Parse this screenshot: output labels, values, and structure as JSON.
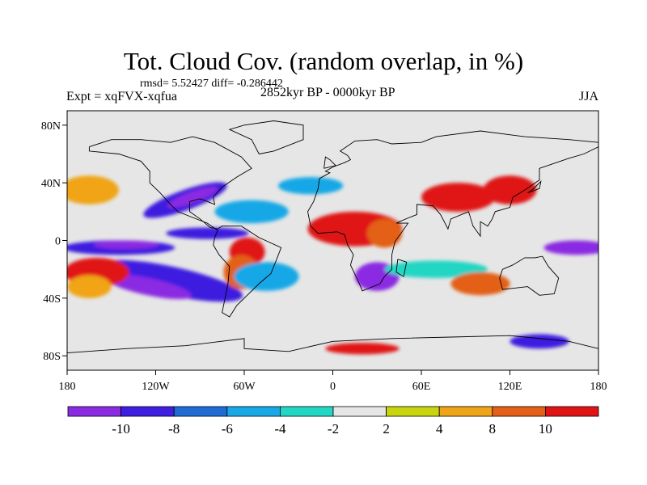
{
  "chart_data": {
    "type": "heatmap",
    "title": "Tot. Cloud Cov. (random overlap, in %)",
    "stats_label": "rmsd= 5.52427 diff= -0.286442",
    "left_label": "Expt = xqFVX-xqfua",
    "center_label": "2852kyr BP - 0000kyr BP",
    "right_label": "JJA",
    "x_ticks": [
      "180",
      "120W",
      "60W",
      "0",
      "60E",
      "120E",
      "180"
    ],
    "y_ticks": [
      "80N",
      "40N",
      "0",
      "40S",
      "80S"
    ],
    "x_tick_values": [
      -180,
      -120,
      -60,
      0,
      60,
      120,
      180
    ],
    "y_tick_values": [
      80,
      40,
      0,
      -40,
      -80
    ],
    "xlim": [
      -180,
      180
    ],
    "ylim": [
      -90,
      90
    ],
    "colorbar": {
      "boundaries": [
        "-10",
        "-8",
        "-6",
        "-4",
        "-2",
        "2",
        "4",
        "8",
        "10"
      ],
      "colors": [
        "#8a2be2",
        "#3e1ee0",
        "#1e6bd6",
        "#19a8e6",
        "#22d6c4",
        "#e6e6e6",
        "#c8d40e",
        "#f0a418",
        "#e36016",
        "#e01414"
      ]
    },
    "field_background": "#e6e6e6",
    "anomalies": [
      {
        "lon": -145,
        "lat": -5,
        "rx": 38,
        "ry": 5,
        "c": "#3e1ee0"
      },
      {
        "lon": -140,
        "lat": -3,
        "rx": 22,
        "ry": 3,
        "c": "#8a2be2"
      },
      {
        "lon": -110,
        "lat": -28,
        "rx": 50,
        "ry": 10,
        "c": "#3e1ee0",
        "rot": 12
      },
      {
        "lon": -125,
        "lat": -32,
        "rx": 30,
        "ry": 6,
        "c": "#8a2be2",
        "rot": 12
      },
      {
        "lon": -160,
        "lat": -22,
        "rx": 22,
        "ry": 10,
        "c": "#e01414"
      },
      {
        "lon": -165,
        "lat": -32,
        "rx": 15,
        "ry": 8,
        "c": "#f0a418"
      },
      {
        "lon": -100,
        "lat": 28,
        "rx": 30,
        "ry": 7,
        "c": "#3e1ee0",
        "rot": -20
      },
      {
        "lon": -95,
        "lat": 30,
        "rx": 18,
        "ry": 4,
        "c": "#8a2be2",
        "rot": -20
      },
      {
        "lon": -165,
        "lat": 35,
        "rx": 20,
        "ry": 10,
        "c": "#f0a418"
      },
      {
        "lon": -55,
        "lat": 20,
        "rx": 25,
        "ry": 8,
        "c": "#19a8e6"
      },
      {
        "lon": -85,
        "lat": 5,
        "rx": 28,
        "ry": 4,
        "c": "#3e1ee0"
      },
      {
        "lon": -58,
        "lat": -8,
        "rx": 12,
        "ry": 10,
        "c": "#e01414"
      },
      {
        "lon": -62,
        "lat": -22,
        "rx": 12,
        "ry": 12,
        "c": "#e36016"
      },
      {
        "lon": -45,
        "lat": -25,
        "rx": 22,
        "ry": 10,
        "c": "#19a8e6"
      },
      {
        "lon": 15,
        "lat": 8,
        "rx": 32,
        "ry": 12,
        "c": "#e01414"
      },
      {
        "lon": 35,
        "lat": 5,
        "rx": 12,
        "ry": 10,
        "c": "#e36016"
      },
      {
        "lon": -15,
        "lat": 38,
        "rx": 22,
        "ry": 6,
        "c": "#19a8e6"
      },
      {
        "lon": 30,
        "lat": -25,
        "rx": 15,
        "ry": 10,
        "c": "#8a2be2"
      },
      {
        "lon": 85,
        "lat": 30,
        "rx": 25,
        "ry": 10,
        "c": "#e01414"
      },
      {
        "lon": 120,
        "lat": 35,
        "rx": 18,
        "ry": 10,
        "c": "#e01414"
      },
      {
        "lon": 165,
        "lat": -5,
        "rx": 22,
        "ry": 5,
        "c": "#8a2be2"
      },
      {
        "lon": 70,
        "lat": -20,
        "rx": 35,
        "ry": 6,
        "c": "#22d6c4"
      },
      {
        "lon": 100,
        "lat": -30,
        "rx": 20,
        "ry": 8,
        "c": "#e36016"
      },
      {
        "lon": 20,
        "lat": -75,
        "rx": 25,
        "ry": 4,
        "c": "#e01414"
      },
      {
        "lon": 140,
        "lat": -70,
        "rx": 20,
        "ry": 5,
        "c": "#3e1ee0"
      }
    ],
    "coastlines": [
      [
        [
          -165,
          65
        ],
        [
          -150,
          70
        ],
        [
          -130,
          70
        ],
        [
          -110,
          68
        ],
        [
          -95,
          72
        ],
        [
          -80,
          68
        ],
        [
          -62,
          58
        ],
        [
          -55,
          50
        ],
        [
          -65,
          44
        ],
        [
          -75,
          37
        ],
        [
          -81,
          30
        ],
        [
          -80,
          25
        ],
        [
          -90,
          29
        ],
        [
          -97,
          27
        ],
        [
          -97,
          20
        ],
        [
          -90,
          15
        ],
        [
          -83,
          9
        ],
        [
          -78,
          8
        ],
        [
          -75,
          10
        ],
        [
          -62,
          10
        ],
        [
          -50,
          2
        ],
        [
          -35,
          -5
        ],
        [
          -38,
          -13
        ],
        [
          -42,
          -23
        ],
        [
          -50,
          -30
        ],
        [
          -58,
          -38
        ],
        [
          -65,
          -45
        ],
        [
          -70,
          -53
        ],
        [
          -75,
          -50
        ],
        [
          -73,
          -40
        ],
        [
          -71,
          -30
        ],
        [
          -70,
          -18
        ],
        [
          -77,
          -10
        ],
        [
          -81,
          -3
        ],
        [
          -80,
          2
        ],
        [
          -78,
          7
        ],
        [
          -85,
          12
        ],
        [
          -95,
          16
        ],
        [
          -105,
          20
        ],
        [
          -110,
          25
        ],
        [
          -117,
          33
        ],
        [
          -124,
          40
        ],
        [
          -124,
          48
        ],
        [
          -130,
          55
        ],
        [
          -145,
          60
        ],
        [
          -165,
          62
        ],
        [
          -165,
          65
        ]
      ],
      [
        [
          -50,
          60
        ],
        [
          -40,
          62
        ],
        [
          -20,
          70
        ],
        [
          -20,
          80
        ],
        [
          -40,
          83
        ],
        [
          -60,
          80
        ],
        [
          -70,
          77
        ],
        [
          -55,
          70
        ],
        [
          -50,
          60
        ]
      ],
      [
        [
          -10,
          36
        ],
        [
          -9,
          43
        ],
        [
          -2,
          47
        ],
        [
          -5,
          48
        ],
        [
          0,
          51
        ],
        [
          8,
          54
        ],
        [
          12,
          56
        ],
        [
          10,
          59
        ],
        [
          5,
          62
        ],
        [
          15,
          69
        ],
        [
          30,
          70
        ],
        [
          40,
          67
        ],
        [
          60,
          68
        ],
        [
          70,
          72
        ],
        [
          100,
          76
        ],
        [
          130,
          72
        ],
        [
          160,
          70
        ],
        [
          180,
          68
        ],
        [
          180,
          65
        ],
        [
          170,
          60
        ],
        [
          160,
          57
        ],
        [
          140,
          50
        ],
        [
          140,
          42
        ],
        [
          130,
          35
        ],
        [
          122,
          30
        ],
        [
          120,
          23
        ],
        [
          110,
          20
        ],
        [
          108,
          15
        ],
        [
          105,
          10
        ],
        [
          100,
          13
        ],
        [
          100,
          3
        ],
        [
          95,
          10
        ],
        [
          92,
          20
        ],
        [
          80,
          15
        ],
        [
          78,
          8
        ],
        [
          73,
          18
        ],
        [
          68,
          24
        ],
        [
          57,
          25
        ],
        [
          57,
          18
        ],
        [
          52,
          16
        ],
        [
          45,
          13
        ],
        [
          43,
          12
        ],
        [
          51,
          12
        ],
        [
          42,
          -1
        ],
        [
          40,
          -10
        ],
        [
          40,
          -20
        ],
        [
          35,
          -25
        ],
        [
          32,
          -30
        ],
        [
          20,
          -35
        ],
        [
          18,
          -30
        ],
        [
          12,
          -17
        ],
        [
          14,
          -10
        ],
        [
          10,
          -3
        ],
        [
          8,
          4
        ],
        [
          3,
          6
        ],
        [
          -10,
          5
        ],
        [
          -15,
          10
        ],
        [
          -17,
          20
        ],
        [
          -13,
          27
        ],
        [
          -10,
          36
        ]
      ],
      [
        [
          115,
          -20
        ],
        [
          122,
          -17
        ],
        [
          130,
          -12
        ],
        [
          137,
          -12
        ],
        [
          142,
          -11
        ],
        [
          146,
          -18
        ],
        [
          153,
          -26
        ],
        [
          150,
          -37
        ],
        [
          140,
          -38
        ],
        [
          132,
          -32
        ],
        [
          115,
          -34
        ],
        [
          113,
          -26
        ],
        [
          115,
          -20
        ]
      ],
      [
        [
          -6,
          50
        ],
        [
          2,
          52
        ],
        [
          -2,
          56
        ],
        [
          -5,
          58
        ],
        [
          -6,
          50
        ]
      ],
      [
        [
          132,
          33
        ],
        [
          135,
          35
        ],
        [
          141,
          41
        ],
        [
          140,
          36
        ],
        [
          132,
          33
        ]
      ],
      [
        [
          44,
          -13
        ],
        [
          50,
          -15
        ],
        [
          48,
          -25
        ],
        [
          43,
          -22
        ],
        [
          44,
          -13
        ]
      ],
      [
        [
          -180,
          -78
        ],
        [
          -140,
          -75
        ],
        [
          -100,
          -73
        ],
        [
          -60,
          -68
        ],
        [
          -60,
          -75
        ],
        [
          -30,
          -77
        ],
        [
          0,
          -70
        ],
        [
          40,
          -68
        ],
        [
          80,
          -67
        ],
        [
          120,
          -66
        ],
        [
          160,
          -70
        ],
        [
          180,
          -75
        ]
      ]
    ]
  }
}
